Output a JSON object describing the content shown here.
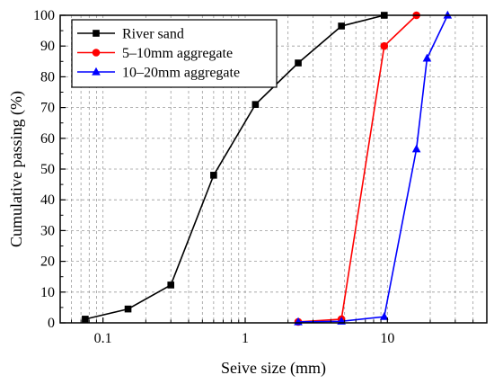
{
  "chart_data": {
    "type": "line",
    "xlabel": "Seive size (mm)",
    "ylabel": "Cumulative passing (%)",
    "xscale": "log",
    "xlim": [
      0.05,
      50
    ],
    "ylim": [
      0,
      100
    ],
    "x_ticks": [
      0.1,
      1,
      10
    ],
    "x_tick_labels": [
      "0.1",
      "1",
      "10"
    ],
    "y_ticks": [
      0,
      10,
      20,
      30,
      40,
      50,
      60,
      70,
      80,
      90,
      100
    ],
    "y_tick_labels": [
      "0",
      "10",
      "20",
      "30",
      "40",
      "50",
      "60",
      "70",
      "80",
      "90",
      "100"
    ],
    "grid": true,
    "legend_position": "top-left",
    "series": [
      {
        "name": "River sand",
        "color": "#000000",
        "marker": "square",
        "x": [
          0.075,
          0.15,
          0.3,
          0.6,
          1.18,
          2.36,
          4.75,
          9.5
        ],
        "y": [
          1.2,
          4.5,
          12.3,
          48.0,
          71.0,
          84.5,
          96.5,
          100
        ]
      },
      {
        "name": "5–10mm aggregate",
        "color": "#ff0000",
        "marker": "circle",
        "x": [
          2.36,
          4.75,
          9.5,
          16
        ],
        "y": [
          0.3,
          1.2,
          90.0,
          100
        ]
      },
      {
        "name": "10–20mm aggregate",
        "color": "#0000ff",
        "marker": "triangle",
        "x": [
          2.36,
          4.75,
          9.5,
          16,
          19,
          26.5
        ],
        "y": [
          0.3,
          0.5,
          2.0,
          56.5,
          86.0,
          100
        ]
      }
    ]
  }
}
